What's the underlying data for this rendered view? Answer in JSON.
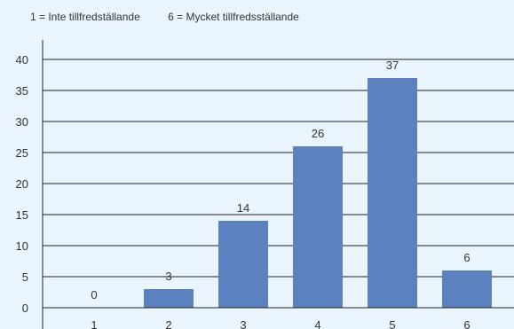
{
  "legend_note": {
    "low": "1 = Inte tillfredställande",
    "high": "6 = Mycket tillfredsställande"
  },
  "colors": {
    "background": "#e9f4fd",
    "bar": "#5b82be",
    "grid": "#222222",
    "text": "#333333"
  },
  "chart_data": {
    "type": "bar",
    "categories": [
      "1",
      "2",
      "3",
      "4",
      "5",
      "6"
    ],
    "values": [
      0,
      3,
      14,
      26,
      37,
      6
    ],
    "data_labels": [
      "0",
      "3",
      "14",
      "26",
      "37",
      "6"
    ],
    "ylim": [
      0,
      40
    ],
    "yticks": [
      "0",
      "5",
      "10",
      "15",
      "20",
      "25",
      "30",
      "35",
      "40"
    ],
    "grid": true,
    "title": "",
    "xlabel": "",
    "ylabel": ""
  }
}
